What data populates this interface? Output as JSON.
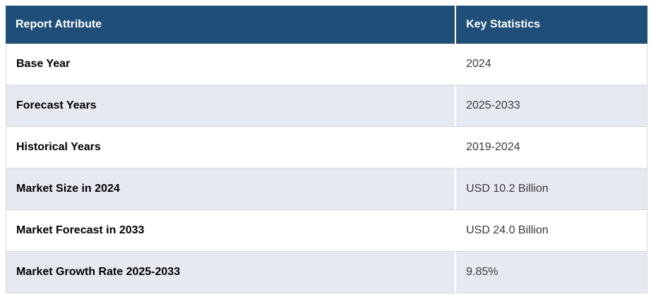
{
  "table": {
    "headers": [
      {
        "label": "Report Attribute"
      },
      {
        "label": "Key Statistics"
      }
    ],
    "rows": [
      {
        "attribute": "Base Year",
        "value": "2024"
      },
      {
        "attribute": "Forecast Years",
        "value": "2025-2033"
      },
      {
        "attribute": "Historical Years",
        "value": "2019-2024"
      },
      {
        "attribute": "Market Size in 2024",
        "value": "USD 10.2 Billion"
      },
      {
        "attribute": "Market Forecast in 2033",
        "value": "USD 24.0 Billion"
      },
      {
        "attribute": "Market Growth Rate 2025-2033",
        "value": "9.85%"
      }
    ],
    "colors": {
      "header_bg": "#1F4E79",
      "header_text": "#FFFFFF",
      "row_bg": "#FFFFFF",
      "row_alt_bg": "#E7E9F2",
      "border": "#D9D9D9",
      "attribute_text": "#000000",
      "value_text": "#3A3A3A"
    }
  },
  "chart_data": {
    "type": "table",
    "title": "",
    "columns": [
      "Report Attribute",
      "Key Statistics"
    ],
    "rows": [
      [
        "Base Year",
        "2024"
      ],
      [
        "Forecast Years",
        "2025-2033"
      ],
      [
        "Historical Years",
        "2019-2024"
      ],
      [
        "Market Size in 2024",
        "USD 10.2 Billion"
      ],
      [
        "Market Forecast in 2033",
        "USD 24.0 Billion"
      ],
      [
        "Market Growth Rate 2025-2033",
        "9.85%"
      ]
    ]
  }
}
